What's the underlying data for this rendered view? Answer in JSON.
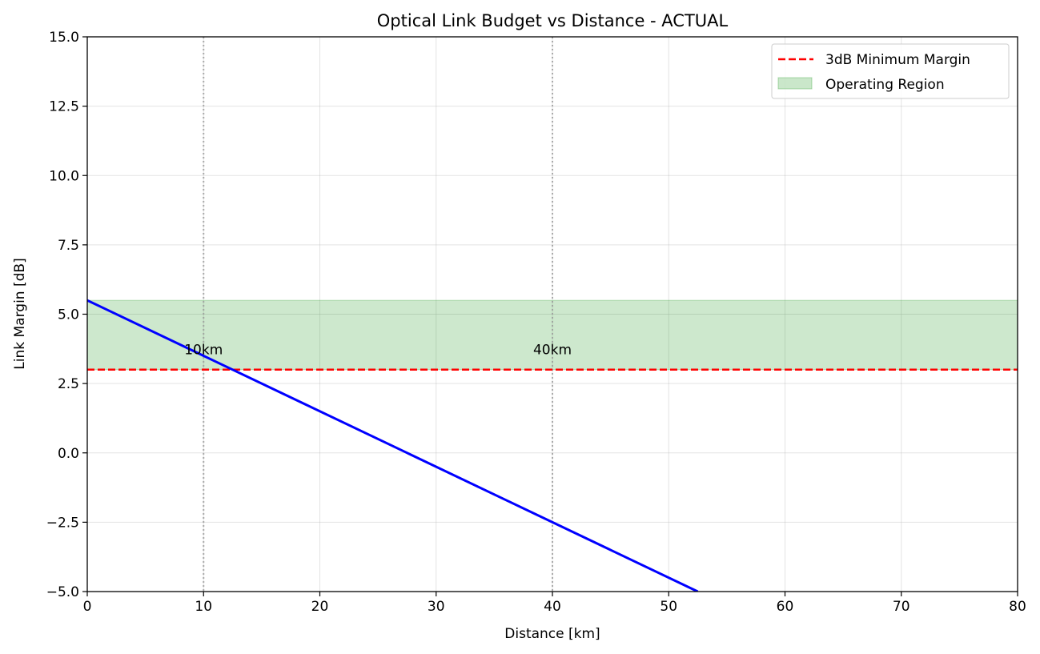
{
  "chart_data": {
    "type": "line",
    "title": "Optical Link Budget vs Distance - ACTUAL",
    "xlabel": "Distance [km]",
    "ylabel": "Link Margin [dB]",
    "xlim": [
      0,
      80
    ],
    "ylim": [
      -5.0,
      15.0
    ],
    "xticks": [
      0,
      10,
      20,
      30,
      40,
      50,
      60,
      70,
      80
    ],
    "xtick_labels": [
      "0",
      "10",
      "20",
      "30",
      "40",
      "50",
      "60",
      "70",
      "80"
    ],
    "yticks": [
      -5.0,
      -2.5,
      0.0,
      2.5,
      5.0,
      7.5,
      10.0,
      12.5,
      15.0
    ],
    "ytick_labels": [
      "−5.0",
      "−2.5",
      "0.0",
      "2.5",
      "5.0",
      "7.5",
      "10.0",
      "12.5",
      "15.0"
    ],
    "grid": true,
    "legend_position": "top-right",
    "series": [
      {
        "type": "line",
        "color": "#0000ff",
        "x": [
          0,
          52.5
        ],
        "y": [
          5.5,
          -5.0
        ]
      },
      {
        "name": "3dB Minimum Margin",
        "type": "hline",
        "style": "dashed",
        "color": "#ff0000",
        "y": 3.0
      },
      {
        "name": "Operating Region",
        "type": "band",
        "color": "#2ca02c",
        "y_range": [
          3.0,
          5.5
        ]
      }
    ],
    "reference_lines": [
      {
        "x": 10,
        "label": "10km",
        "label_y": 3.5
      },
      {
        "x": 40,
        "label": "40km",
        "label_y": 3.5
      }
    ]
  }
}
